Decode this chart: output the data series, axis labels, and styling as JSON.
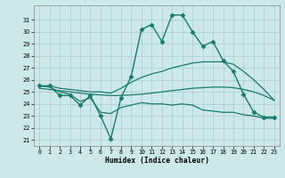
{
  "xlabel": "Humidex (Indice chaleur)",
  "background_color": "#cde8e8",
  "grid_color": "#a8cccc",
  "line_color": "#1a7a6e",
  "xlim": [
    -0.5,
    23.5
  ],
  "ylim": [
    20.5,
    32.2
  ],
  "yticks": [
    21,
    22,
    23,
    24,
    25,
    26,
    27,
    28,
    29,
    30,
    31
  ],
  "xticks": [
    0,
    1,
    2,
    3,
    4,
    5,
    6,
    7,
    8,
    9,
    10,
    11,
    12,
    13,
    14,
    15,
    16,
    17,
    18,
    19,
    20,
    21,
    22,
    23
  ],
  "xtick_labels": [
    "0",
    "1",
    "2",
    "3",
    "4",
    "5",
    "6",
    "7",
    "8",
    "9",
    "10",
    "11",
    "12",
    "13",
    "14",
    "15",
    "16",
    "17",
    "18",
    "19",
    "20",
    "21",
    "22",
    "23"
  ],
  "series": [
    {
      "x": [
        0,
        1,
        2,
        3,
        4,
        5,
        6,
        7,
        8,
        9,
        10,
        11,
        12,
        13,
        14,
        15,
        16,
        17,
        18,
        19,
        20,
        21,
        22,
        23
      ],
      "y": [
        25.5,
        25.5,
        24.7,
        24.7,
        23.9,
        24.7,
        23.0,
        21.1,
        24.5,
        26.3,
        30.2,
        30.6,
        29.2,
        31.4,
        31.4,
        30.0,
        28.8,
        29.2,
        27.6,
        26.7,
        24.8,
        23.3,
        22.9,
        22.9
      ],
      "marker": "D",
      "markersize": 2.5,
      "linewidth": 1.0
    },
    {
      "x": [
        0,
        1,
        2,
        3,
        4,
        5,
        6,
        7,
        8,
        9,
        10,
        11,
        12,
        13,
        14,
        15,
        16,
        17,
        18,
        19,
        20,
        21,
        22,
        23
      ],
      "y": [
        25.5,
        25.5,
        25.3,
        25.2,
        25.1,
        25.0,
        25.0,
        24.9,
        25.3,
        25.8,
        26.2,
        26.5,
        26.7,
        27.0,
        27.2,
        27.4,
        27.5,
        27.5,
        27.5,
        27.3,
        26.7,
        26.0,
        25.2,
        24.3
      ],
      "marker": null,
      "linewidth": 0.9
    },
    {
      "x": [
        0,
        1,
        2,
        3,
        4,
        5,
        6,
        7,
        8,
        9,
        10,
        11,
        12,
        13,
        14,
        15,
        16,
        17,
        18,
        19,
        20,
        21,
        22,
        23
      ],
      "y": [
        25.3,
        25.2,
        25.1,
        25.0,
        24.9,
        24.8,
        24.75,
        24.7,
        24.7,
        24.75,
        24.8,
        24.9,
        25.0,
        25.1,
        25.2,
        25.3,
        25.35,
        25.4,
        25.4,
        25.35,
        25.2,
        25.0,
        24.7,
        24.3
      ],
      "marker": null,
      "linewidth": 0.9
    },
    {
      "x": [
        0,
        1,
        2,
        3,
        4,
        5,
        6,
        7,
        8,
        9,
        10,
        11,
        12,
        13,
        14,
        15,
        16,
        17,
        18,
        19,
        20,
        21,
        22,
        23
      ],
      "y": [
        25.5,
        25.4,
        25.0,
        24.8,
        24.2,
        24.5,
        23.3,
        23.2,
        23.7,
        23.9,
        24.1,
        24.0,
        24.0,
        23.9,
        24.0,
        23.9,
        23.5,
        23.4,
        23.3,
        23.3,
        23.1,
        23.0,
        22.8,
        22.8
      ],
      "marker": null,
      "linewidth": 0.9
    }
  ]
}
